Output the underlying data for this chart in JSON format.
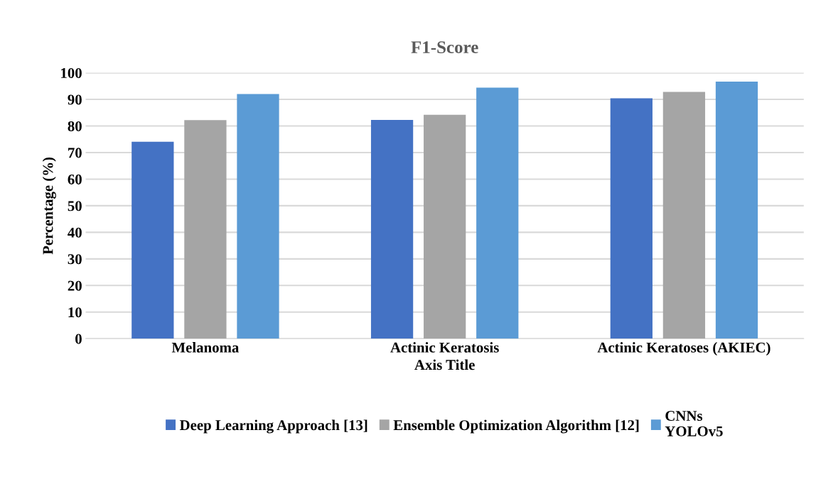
{
  "chart_data": {
    "type": "bar",
    "title": "F1-Score",
    "xlabel": "Axis Title",
    "ylabel": "Percentage (%)",
    "categories": [
      "Melanoma",
      "Actinic Keratosis",
      "Actinic Keratoses (AKIEC)"
    ],
    "series": [
      {
        "name": "Deep Learning Approach [13]",
        "color": "#4472c4",
        "values": [
          74.1,
          82.3,
          90.4
        ]
      },
      {
        "name": "Ensemble Optimization Algorithm [12]",
        "color": "#a5a5a5",
        "values": [
          82.2,
          84.2,
          92.8
        ]
      },
      {
        "name": "CNNs\nYOLOv5",
        "color": "#5b9bd5",
        "values": [
          92.0,
          94.4,
          96.7
        ]
      }
    ],
    "ylim": [
      0,
      100
    ],
    "yticks": [
      0,
      10,
      20,
      30,
      40,
      50,
      60,
      70,
      80,
      90,
      100
    ],
    "grid": "y",
    "legend": "bottom"
  }
}
